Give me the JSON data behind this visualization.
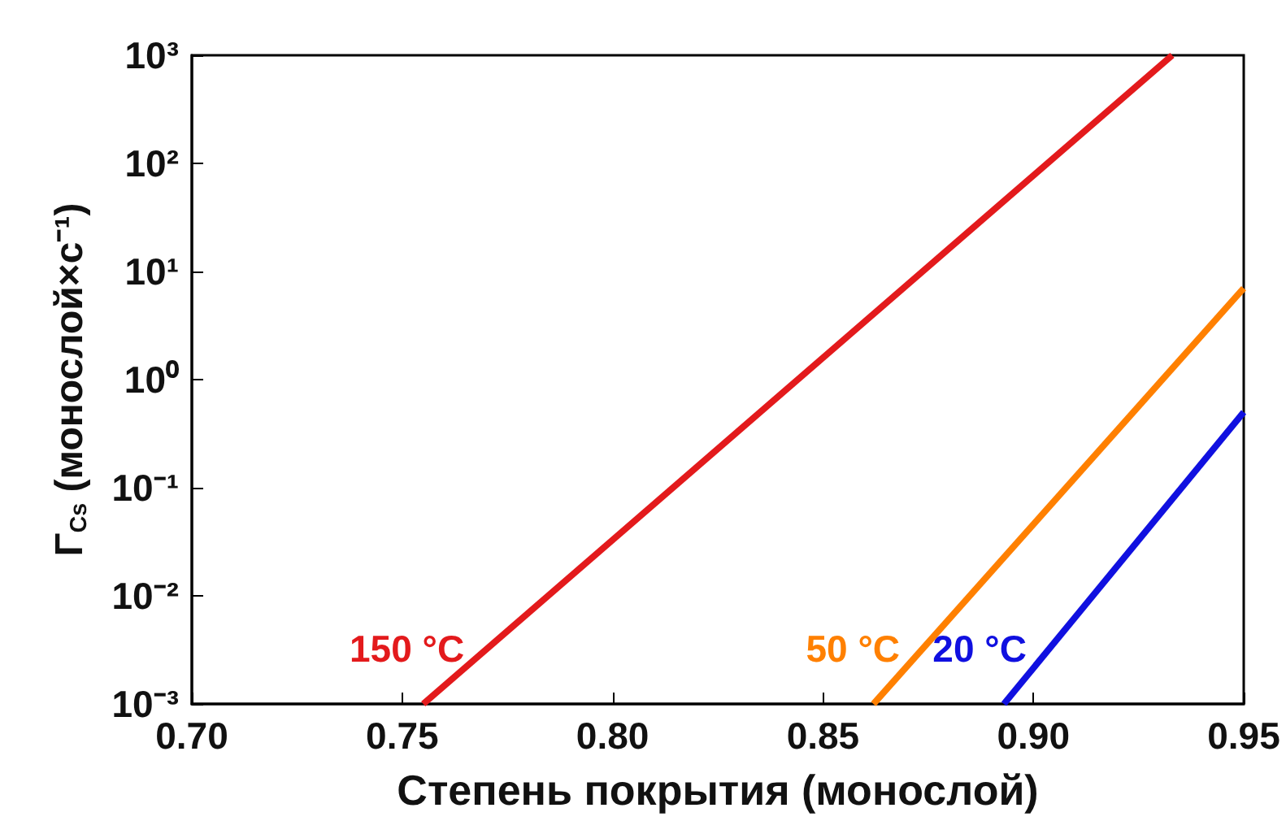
{
  "chart_data": {
    "type": "line",
    "xlabel": "Степень покрытия (монослой)",
    "ylabel": "Γ$_{Cs}$ (монослой×с⁻¹)",
    "log": "y",
    "grid": false,
    "legend": false,
    "marker": "none",
    "line_style": "solid",
    "xlim": [
      0.7,
      0.95
    ],
    "xticks": [
      {
        "value": 0.7,
        "label": "0.70"
      },
      {
        "value": 0.75,
        "label": "0.75"
      },
      {
        "value": 0.8,
        "label": "0.80"
      },
      {
        "value": 0.85,
        "label": "0.85"
      },
      {
        "value": 0.9,
        "label": "0.90"
      },
      {
        "value": 0.95,
        "label": "0.95"
      }
    ],
    "ylim": [
      0.001,
      1000
    ],
    "yticks": [
      {
        "value": 0.001,
        "label": "10⁻³"
      },
      {
        "value": 0.01,
        "label": "10⁻²"
      },
      {
        "value": 0.1,
        "label": "10⁻¹"
      },
      {
        "value": 1,
        "label": "10⁰"
      },
      {
        "value": 10,
        "label": "10¹"
      },
      {
        "value": 100,
        "label": "10²"
      },
      {
        "value": 1000,
        "label": "10³"
      }
    ],
    "series": [
      {
        "name": "150 °C",
        "color": "#e31a1c",
        "x": [
          0.755,
          0.933
        ],
        "values": [
          0.001,
          1000
        ]
      },
      {
        "name": "50 °C",
        "color": "#ff8000",
        "x": [
          0.862,
          0.95
        ],
        "values": [
          0.001,
          7
        ]
      },
      {
        "name": "20 °C",
        "color": "#1010e0",
        "x": [
          0.893,
          0.95
        ],
        "values": [
          0.001,
          0.5
        ]
      }
    ]
  }
}
